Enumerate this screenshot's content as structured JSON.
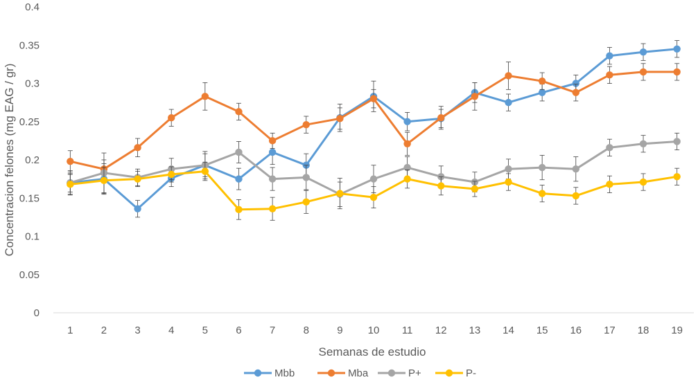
{
  "chart_data": {
    "type": "line",
    "title": "",
    "xlabel": "Semanas de estudio",
    "ylabel": "Concentracion felones (mg EAG / gr)",
    "ylim": [
      0,
      0.4
    ],
    "yticks": [
      "0",
      "0.05",
      "0.1",
      "0.15",
      "0.2",
      "0.25",
      "0.3",
      "0.35",
      "0.4"
    ],
    "categories": [
      "1",
      "2",
      "3",
      "4",
      "5",
      "6",
      "7",
      "8",
      "9",
      "10",
      "11",
      "12",
      "13",
      "14",
      "15",
      "16",
      "17",
      "18",
      "19"
    ],
    "grid": false,
    "legend_position": "bottom",
    "error_bars": true,
    "series": [
      {
        "name": "Mbb",
        "color": "#5B9BD5",
        "values": [
          0.17,
          0.175,
          0.136,
          0.176,
          0.193,
          0.175,
          0.21,
          0.193,
          0.255,
          0.283,
          0.25,
          0.254,
          0.288,
          0.275,
          0.288,
          0.3,
          0.336,
          0.341,
          0.345
        ],
        "errors": [
          0.012,
          0.02,
          0.011,
          0.011,
          0.015,
          0.014,
          0.016,
          0.015,
          0.018,
          0.02,
          0.012,
          0.012,
          0.013,
          0.011,
          0.011,
          0.011,
          0.011,
          0.011,
          0.011
        ]
      },
      {
        "name": "Mba",
        "color": "#ED7D31",
        "values": [
          0.198,
          0.188,
          0.216,
          0.255,
          0.283,
          0.263,
          0.225,
          0.246,
          0.254,
          0.28,
          0.221,
          0.255,
          0.283,
          0.31,
          0.303,
          0.288,
          0.311,
          0.315,
          0.315
        ],
        "errors": [
          0.014,
          0.012,
          0.012,
          0.011,
          0.018,
          0.011,
          0.01,
          0.011,
          0.014,
          0.012,
          0.015,
          0.015,
          0.018,
          0.018,
          0.011,
          0.011,
          0.011,
          0.011,
          0.011
        ]
      },
      {
        "name": "P+",
        "color": "#A5A5A5",
        "values": [
          0.17,
          0.183,
          0.177,
          0.188,
          0.193,
          0.21,
          0.175,
          0.177,
          0.155,
          0.175,
          0.19,
          0.178,
          0.171,
          0.188,
          0.19,
          0.188,
          0.216,
          0.221,
          0.224
        ],
        "errors": [
          0.016,
          0.026,
          0.011,
          0.014,
          0.018,
          0.014,
          0.015,
          0.016,
          0.016,
          0.018,
          0.014,
          0.014,
          0.013,
          0.013,
          0.016,
          0.016,
          0.011,
          0.011,
          0.011
        ]
      },
      {
        "name": "P-",
        "color": "#FFC000",
        "values": [
          0.168,
          0.173,
          0.175,
          0.181,
          0.185,
          0.135,
          0.136,
          0.145,
          0.156,
          0.151,
          0.175,
          0.166,
          0.162,
          0.171,
          0.156,
          0.153,
          0.168,
          0.171,
          0.178
        ],
        "errors": [
          0.013,
          0.017,
          0.01,
          0.01,
          0.012,
          0.013,
          0.015,
          0.015,
          0.02,
          0.014,
          0.012,
          0.012,
          0.01,
          0.011,
          0.011,
          0.011,
          0.011,
          0.011,
          0.011
        ]
      }
    ]
  }
}
